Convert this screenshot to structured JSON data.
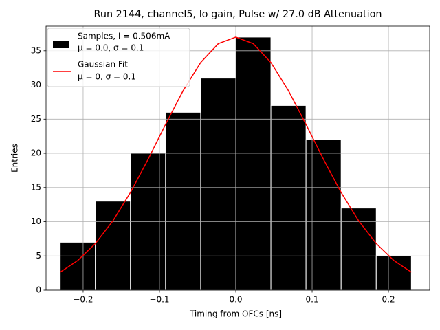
{
  "chart_data": {
    "type": "histogram",
    "title": "Run 2144, channel5, lo gain, Pulse w/ 27.0 dB Attenuation",
    "xlabel": "Timing from OFCs [ns]",
    "ylabel": "Entries",
    "bins": [
      -0.23,
      -0.184,
      -0.138,
      -0.092,
      -0.046,
      0,
      0.046,
      0.092,
      0.138,
      0.184,
      0.23
    ],
    "counts": [
      7,
      13,
      20,
      26,
      31,
      37,
      27,
      22,
      12,
      5
    ],
    "color": "#000000",
    "edgecolor": "#ffffff",
    "hist_name": "Samples, I = 0.506mA",
    "hist_detail": "μ = 0.0, σ = 0.1",
    "fit": {
      "type": "line",
      "name": "Gaussian Fit",
      "detail": "μ = 0, σ = 0.1",
      "color": "#ff0000",
      "x": [
        -0.23,
        -0.207,
        -0.184,
        -0.161,
        -0.138,
        -0.115,
        -0.092,
        -0.069,
        -0.046,
        -0.023,
        0,
        0.023,
        0.046,
        0.069,
        0.092,
        0.115,
        0.138,
        0.161,
        0.184,
        0.207,
        0.23
      ],
      "values": [
        2.63,
        4.34,
        6.81,
        10.12,
        14.28,
        19.1,
        24.23,
        29.16,
        33.29,
        36.03,
        37,
        36.03,
        33.29,
        29.16,
        24.23,
        19.1,
        14.28,
        10.12,
        6.81,
        4.34,
        2.63
      ]
    },
    "xlim": [
      -0.2486,
      0.254
    ],
    "ylim": [
      0,
      38.6
    ],
    "xticks": [
      {
        "value": -0.2,
        "label": "−0.2"
      },
      {
        "value": -0.1,
        "label": "−0.1"
      },
      {
        "value": 0,
        "label": "0.0"
      },
      0.1,
      0.2
    ],
    "yticks": [
      0,
      5,
      10,
      15,
      20,
      25,
      30,
      35
    ],
    "grid": true,
    "legend": "upper left"
  }
}
